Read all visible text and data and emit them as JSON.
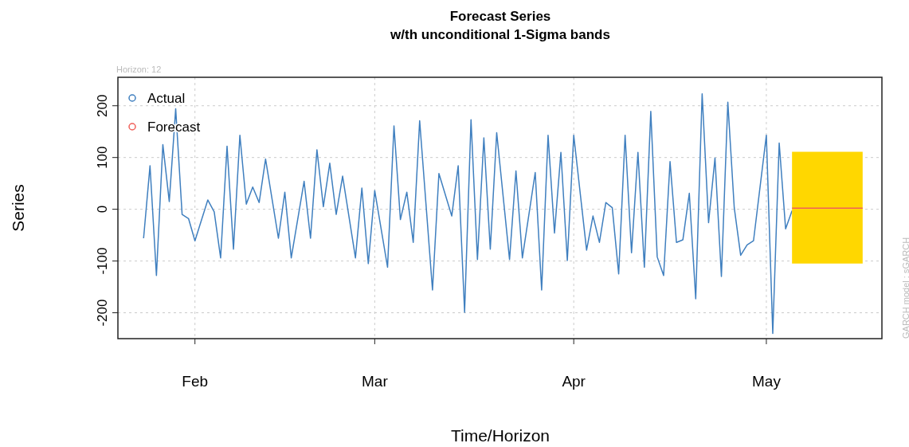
{
  "chart_data": {
    "type": "line",
    "title": "Forecast Series",
    "subtitle": "w/th unconditional 1-Sigma bands",
    "xlabel": "Time/Horizon",
    "ylabel": "Series",
    "annotations": [
      "Horizon: 12",
      "GARCH model : sGARCH"
    ],
    "xlim": [
      "--01-20",
      "--05-19"
    ],
    "ylim": [
      -250,
      255
    ],
    "xticks": [
      {
        "value": "--02-01",
        "label": "Feb"
      },
      {
        "value": "--03-01",
        "label": "Mar"
      },
      {
        "value": "--04-01",
        "label": "Apr"
      },
      {
        "value": "--05-01",
        "label": "May"
      }
    ],
    "yticks": [
      -200,
      -100,
      0,
      100,
      200
    ],
    "grid": true,
    "legend": "top left",
    "marker": "none",
    "line_style": "solid",
    "series": [
      {
        "name": "Actual",
        "color": "#3f7fbf",
        "x": [
          "--01-24",
          "--01-25",
          "--01-26",
          "--01-27",
          "--01-28",
          "--01-29",
          "--01-30",
          "--01-31",
          "--02-01",
          "--02-03",
          "--02-04",
          "--02-05",
          "--02-06",
          "--02-07",
          "--02-08",
          "--02-09",
          "--02-10",
          "--02-11",
          "--02-12",
          "--02-14",
          "--02-15",
          "--02-16",
          "--02-18",
          "--02-19",
          "--02-20",
          "--02-21",
          "--02-22",
          "--02-23",
          "--02-24",
          "--02-26",
          "--02-27",
          "--02-28",
          "--03-01",
          "--03-03",
          "--03-04",
          "--03-05",
          "--03-06",
          "--03-07",
          "--03-08",
          "--03-10",
          "--03-11",
          "--03-13",
          "--03-14",
          "--03-15",
          "--03-16",
          "--03-17",
          "--03-18",
          "--03-19",
          "--03-20",
          "--03-22",
          "--03-23",
          "--03-24",
          "--03-26",
          "--03-27",
          "--03-28",
          "--03-29",
          "--03-30",
          "--03-31",
          "--04-01",
          "--04-03",
          "--04-04",
          "--04-05",
          "--04-06",
          "--04-07",
          "--04-08",
          "--04-09",
          "--04-10",
          "--04-11",
          "--04-12",
          "--04-13",
          "--04-14",
          "--04-15",
          "--04-16",
          "--04-17",
          "--04-18",
          "--04-19",
          "--04-20",
          "--04-21",
          "--04-22",
          "--04-23",
          "--04-24",
          "--04-25",
          "--04-26",
          "--04-27",
          "--04-28",
          "--04-29",
          "--05-01",
          "--05-02",
          "--05-03",
          "--05-04",
          "--05-05"
        ],
        "values": [
          -56,
          84,
          -128,
          125,
          15,
          194,
          -10,
          -18,
          -61,
          18,
          -5,
          -94,
          122,
          -77,
          143,
          10,
          43,
          13,
          97,
          -56,
          33,
          -94,
          54,
          -56,
          115,
          5,
          89,
          -10,
          64,
          -94,
          41,
          -105,
          36,
          -112,
          161,
          -20,
          33,
          -64,
          171,
          -156,
          69,
          -13,
          84,
          -199,
          173,
          -97,
          138,
          -77,
          148,
          -97,
          74,
          -94,
          71,
          -156,
          143,
          -46,
          110,
          -99,
          143,
          -79,
          -13,
          -64,
          13,
          3,
          -125,
          143,
          -84,
          110,
          -112,
          189,
          -92,
          -128,
          92,
          -64,
          -59,
          31,
          -173,
          223,
          -26,
          99,
          -130,
          207,
          3,
          -89,
          -69,
          -61,
          143,
          -240,
          128,
          -38,
          -3
        ]
      },
      {
        "name": "Forecast",
        "color": "#f0605a",
        "x": [
          "--05-05",
          "--05-06",
          "--05-07",
          "--05-08",
          "--05-09",
          "--05-10",
          "--05-11",
          "--05-12",
          "--05-13",
          "--05-14",
          "--05-15",
          "--05-16"
        ],
        "values": [
          2,
          2,
          2,
          2,
          2,
          2,
          2,
          2,
          2,
          2,
          2,
          2
        ],
        "lower": [
          -105,
          -105,
          -105,
          -105,
          -105,
          -105,
          -105,
          -105,
          -105,
          -105,
          -105,
          -105
        ],
        "upper": [
          111,
          111,
          111,
          111,
          111,
          111,
          111,
          111,
          111,
          111,
          111,
          111
        ]
      }
    ]
  }
}
